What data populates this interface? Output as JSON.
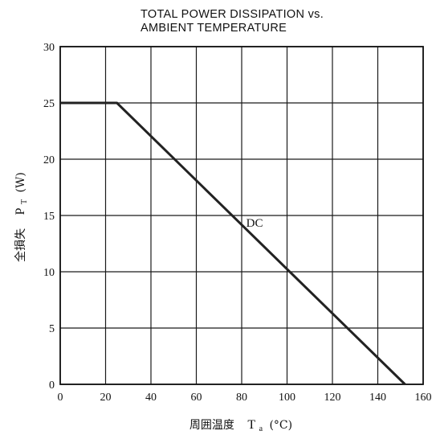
{
  "chart_data": {
    "type": "line",
    "title_lines": [
      "TOTAL POWER DISSIPATION vs.",
      "AMBIENT TEMPERATURE"
    ],
    "xlabel_text": "周囲温度",
    "xlabel_symbol": "T",
    "xlabel_subscript": "a",
    "xlabel_unit": "(°C)",
    "ylabel_text": "全損失",
    "ylabel_symbol": "P",
    "ylabel_subscript": "T",
    "ylabel_unit": "(W)",
    "xlim": [
      0,
      160
    ],
    "ylim": [
      0,
      30
    ],
    "xticks": [
      0,
      20,
      40,
      60,
      80,
      100,
      120,
      140,
      160
    ],
    "yticks": [
      0,
      5,
      10,
      15,
      20,
      25,
      30
    ],
    "grid": true,
    "series": [
      {
        "name": "DC",
        "x": [
          0,
          25,
          152
        ],
        "y": [
          25,
          25,
          0
        ]
      }
    ],
    "annotations": [
      {
        "text": "DC",
        "x": 82,
        "y": 14
      }
    ]
  }
}
